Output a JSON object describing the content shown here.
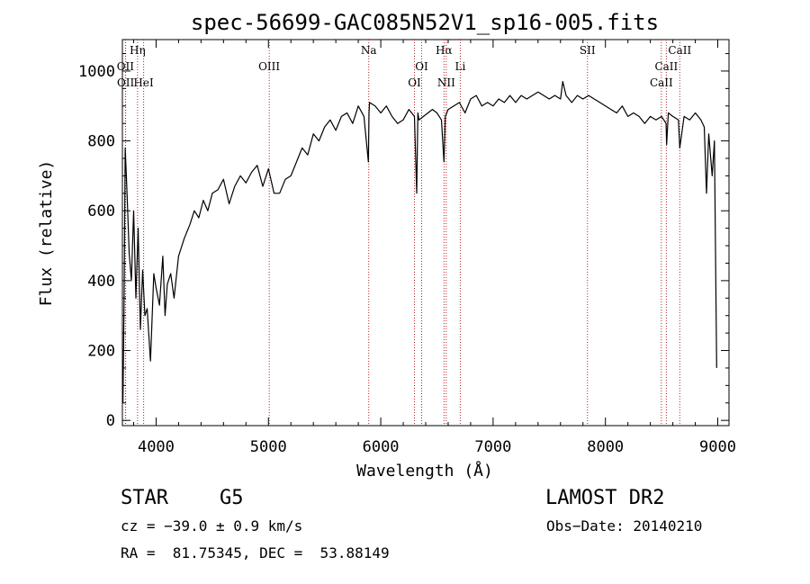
{
  "chart_data": {
    "type": "line",
    "title": "spec-56699-GAC085N52V1_sp16-005.fits",
    "xlabel": "Wavelength (Å)",
    "ylabel": "Flux (relative)",
    "xlim": [
      3700,
      9100
    ],
    "ylim": [
      -15,
      1090
    ],
    "x_ticks": [
      4000,
      5000,
      6000,
      7000,
      8000,
      9000
    ],
    "y_ticks": [
      0,
      200,
      400,
      600,
      800,
      1000
    ],
    "grid": false,
    "series": [
      {
        "x": [
          3705,
          3715,
          3725,
          3735,
          3745,
          3760,
          3780,
          3800,
          3820,
          3840,
          3860,
          3880,
          3900,
          3920,
          3950,
          3980,
          4000,
          4030,
          4060,
          4080,
          4100,
          4130,
          4160,
          4200,
          4250,
          4300,
          4340,
          4380,
          4420,
          4460,
          4500,
          4550,
          4600,
          4650,
          4700,
          4750,
          4800,
          4850,
          4900,
          4950,
          5000,
          5050,
          5100,
          5150,
          5200,
          5250,
          5300,
          5350,
          5400,
          5450,
          5500,
          5550,
          5600,
          5650,
          5700,
          5750,
          5800,
          5850,
          5890,
          5895,
          5900,
          5950,
          6000,
          6050,
          6100,
          6150,
          6200,
          6250,
          6300,
          6320,
          6330,
          6340,
          6380,
          6420,
          6460,
          6500,
          6540,
          6563,
          6575,
          6600,
          6650,
          6700,
          6750,
          6800,
          6850,
          6900,
          6950,
          7000,
          7050,
          7100,
          7150,
          7200,
          7250,
          7300,
          7350,
          7400,
          7450,
          7500,
          7550,
          7600,
          7620,
          7650,
          7700,
          7750,
          7800,
          7850,
          7900,
          7950,
          8000,
          8050,
          8100,
          8150,
          8200,
          8250,
          8300,
          8350,
          8400,
          8450,
          8500,
          8540,
          8545,
          8560,
          8600,
          8650,
          8662,
          8700,
          8750,
          8800,
          8850,
          8880,
          8900,
          8920,
          8950,
          8970,
          8990
        ],
        "y": [
          50,
          350,
          780,
          700,
          620,
          480,
          400,
          600,
          350,
          550,
          260,
          430,
          300,
          320,
          170,
          420,
          380,
          330,
          470,
          300,
          390,
          420,
          350,
          470,
          520,
          560,
          600,
          580,
          630,
          600,
          650,
          660,
          690,
          620,
          670,
          700,
          680,
          710,
          730,
          670,
          720,
          650,
          650,
          690,
          700,
          740,
          780,
          760,
          820,
          800,
          840,
          860,
          830,
          870,
          880,
          850,
          900,
          870,
          740,
          880,
          910,
          900,
          880,
          900,
          870,
          850,
          860,
          890,
          870,
          650,
          880,
          860,
          870,
          880,
          890,
          880,
          860,
          740,
          870,
          890,
          900,
          910,
          880,
          920,
          930,
          900,
          910,
          900,
          920,
          910,
          930,
          910,
          930,
          920,
          930,
          940,
          930,
          920,
          930,
          920,
          970,
          930,
          910,
          930,
          920,
          930,
          920,
          910,
          900,
          890,
          880,
          900,
          870,
          880,
          870,
          850,
          870,
          860,
          870,
          850,
          790,
          880,
          870,
          860,
          780,
          870,
          860,
          880,
          860,
          840,
          650,
          820,
          700,
          800,
          150
        ]
      }
    ],
    "lines": [
      {
        "label": "Hη",
        "x": 3835,
        "row": 1
      },
      {
        "label": "OII",
        "x": 3727,
        "row": 2
      },
      {
        "label": "OII",
        "x": 3729,
        "row": 3
      },
      {
        "label": "HeI",
        "x": 3889,
        "row": 3
      },
      {
        "label": "OIII",
        "x": 5007,
        "row": 2
      },
      {
        "label": "Na",
        "x": 5893,
        "row": 1
      },
      {
        "label": "OI",
        "x": 6364,
        "row": 2
      },
      {
        "label": "OI",
        "x": 6300,
        "row": 3
      },
      {
        "label": "Hα",
        "x": 6563,
        "row": 1
      },
      {
        "label": "NII",
        "x": 6583,
        "row": 3
      },
      {
        "label": "Li",
        "x": 6708,
        "row": 2
      },
      {
        "label": "SII",
        "x": 7840,
        "row": 1
      },
      {
        "label": "CaII",
        "x": 8662,
        "row": 1
      },
      {
        "label": "CaII",
        "x": 8542,
        "row": 2
      },
      {
        "label": "CaII",
        "x": 8498,
        "row": 3
      }
    ]
  },
  "info": {
    "object_class": "STAR",
    "subclass": "G5",
    "survey": "LAMOST DR2",
    "redshift": "cz = −39.0 ± 0.9 km/s",
    "obs_date": "Obs−Date: 20140210",
    "coords": "RA =  81.75345, DEC =  53.88149"
  },
  "colors": {
    "spectrum": "#000000",
    "line_markers": "#b22222",
    "axes": "#000000"
  }
}
